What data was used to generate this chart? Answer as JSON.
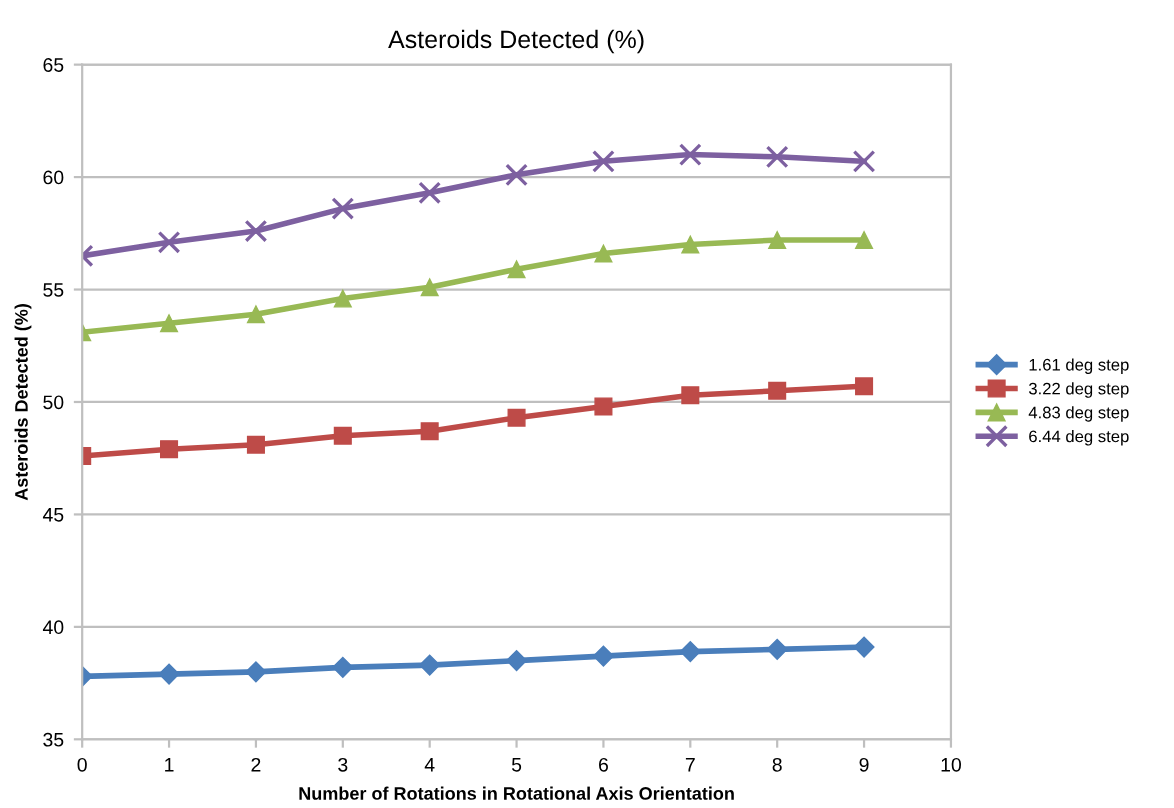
{
  "chart_data": {
    "type": "line",
    "title": "Asteroids Detected (%)",
    "xlabel": "Number of Rotations in Rotational Axis Orientation",
    "ylabel": "Asteroids Detected (%)",
    "x": [
      0,
      1,
      2,
      3,
      4,
      5,
      6,
      7,
      8,
      9
    ],
    "xlim": [
      0,
      10
    ],
    "xticks": [
      0,
      1,
      2,
      3,
      4,
      5,
      6,
      7,
      8,
      9,
      10
    ],
    "ylim": [
      35,
      65
    ],
    "yticks": [
      35,
      40,
      45,
      50,
      55,
      60,
      65
    ],
    "grid": "y",
    "legend": "right",
    "series": [
      {
        "name": "1.61 deg step",
        "color": "#4a7ebb",
        "marker": "diamond",
        "values": [
          37.8,
          37.9,
          38.0,
          38.2,
          38.3,
          38.5,
          38.7,
          38.9,
          39.0,
          39.1
        ]
      },
      {
        "name": "3.22 deg step",
        "color": "#be4b48",
        "marker": "square",
        "values": [
          47.6,
          47.9,
          48.1,
          48.5,
          48.7,
          49.3,
          49.8,
          50.3,
          50.5,
          50.7
        ]
      },
      {
        "name": "4.83 deg step",
        "color": "#98b954",
        "marker": "triangle",
        "values": [
          53.1,
          53.5,
          53.9,
          54.6,
          55.1,
          55.9,
          56.6,
          57.0,
          57.2,
          57.2
        ]
      },
      {
        "name": "6.44 deg step",
        "color": "#7d60a0",
        "marker": "cross",
        "values": [
          56.5,
          57.1,
          57.6,
          58.6,
          59.3,
          60.1,
          60.7,
          61.0,
          60.9,
          60.7
        ]
      }
    ]
  }
}
